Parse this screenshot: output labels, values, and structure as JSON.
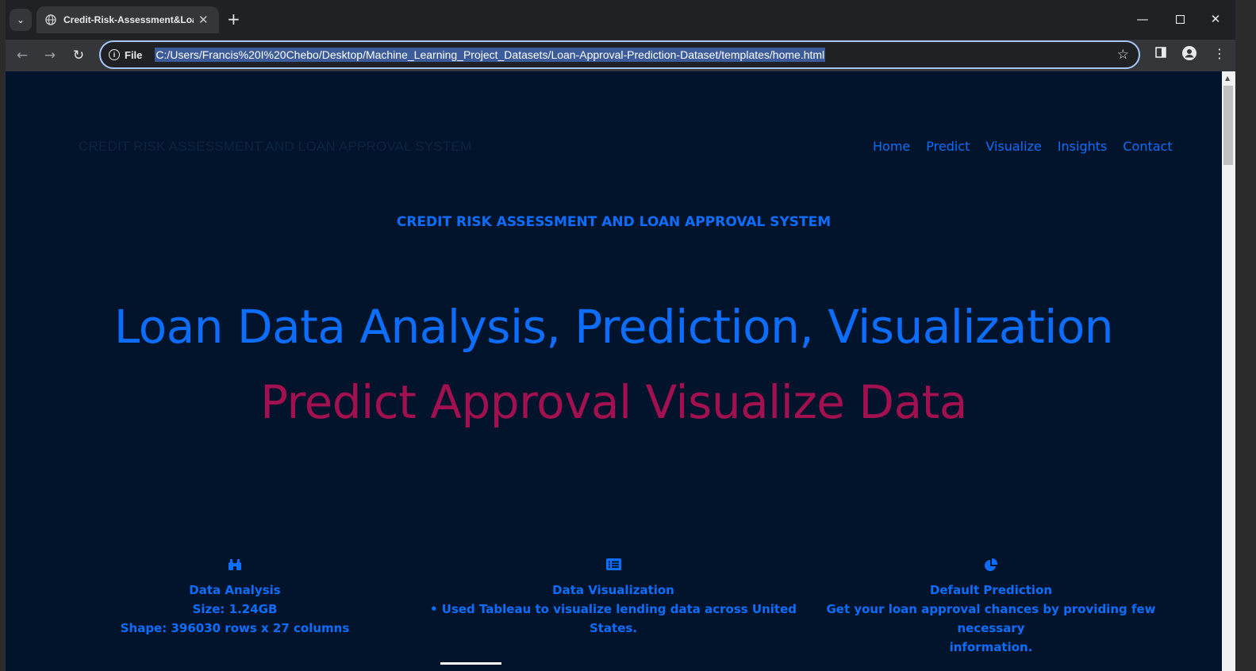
{
  "browser": {
    "tab_title": "Credit-Risk-Assessment&Loan-Approval",
    "site_chip": "File",
    "url": "C:/Users/Francis%20I%20Chebo/Desktop/Machine_Learning_Project_Datasets/Loan-Approval-Prediction-Dataset/templates/home.html"
  },
  "page": {
    "brand": "CREDIT RISK ASSESSMENT AND LOAN APPROVAL SYSTEM",
    "nav": [
      "Home",
      "Predict",
      "Visualize",
      "Insights",
      "Contact"
    ],
    "subtitle": "CREDIT RISK ASSESSMENT AND LOAN APPROVAL SYSTEM",
    "hero_line1": "Loan Data Analysis, Prediction, Visualization",
    "hero_line2": "Predict Approval Visualize Data",
    "features": [
      {
        "icon": "binoculars-icon",
        "title": "Data Analysis",
        "lines": [
          "Size: 1.24GB",
          "Shape: 396030 rows x 27 columns"
        ]
      },
      {
        "icon": "list-alt-icon",
        "title": "Data Visualization",
        "lines": [
          "• Used Tableau to visualize lending data across United States."
        ]
      },
      {
        "icon": "pie-chart-icon",
        "title": "Default Prediction",
        "lines": [
          "Get your loan approval chances by providing few necessary",
          "information."
        ]
      }
    ]
  },
  "colors": {
    "background": "#02142b",
    "accent_blue": "#0d6efd",
    "accent_crimson": "#a3104f"
  }
}
